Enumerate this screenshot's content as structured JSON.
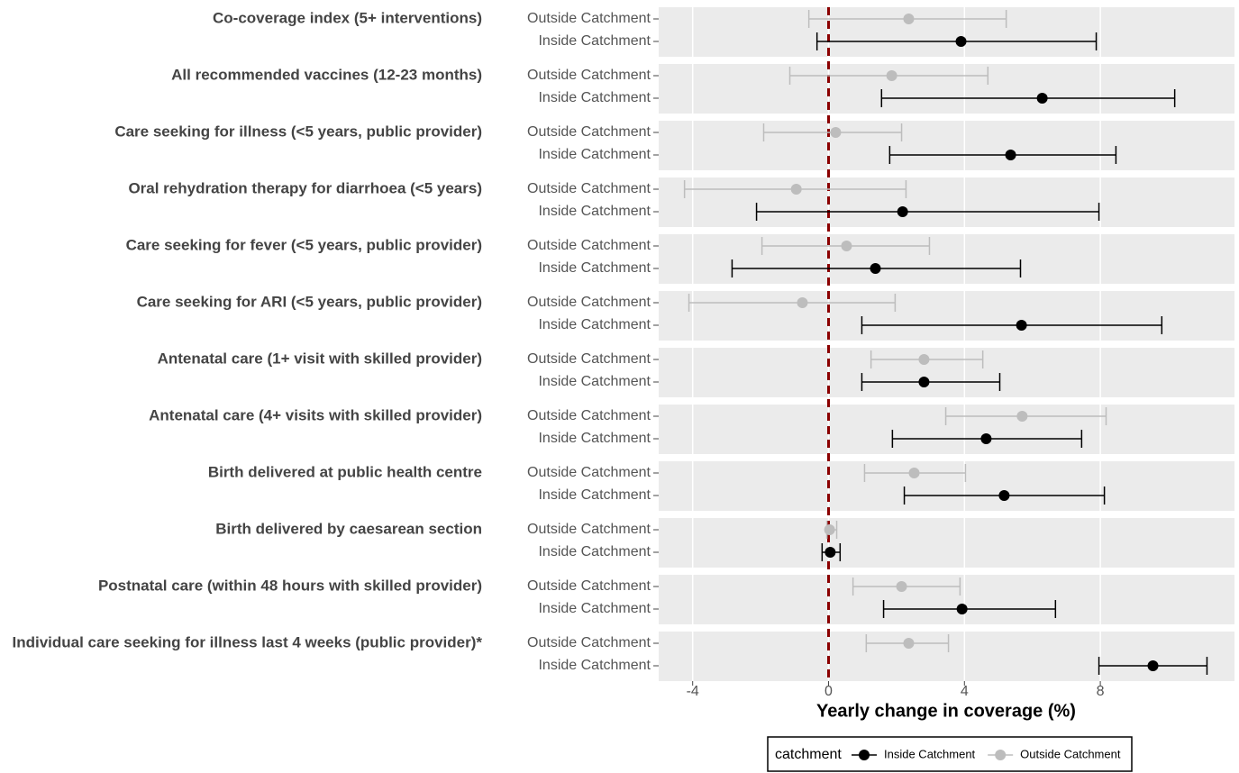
{
  "chart_data": {
    "type": "forest",
    "x_label": "Yearly change in coverage (%)",
    "legend_title": "catchment",
    "categories": [
      "Co-coverage index (5+ interventions)",
      "All recommended vaccines (12-23 months)",
      "Care seeking for illness (<5 years, public provider)",
      "Oral rehydration therapy for diarrhoea (<5 years)",
      "Care seeking for fever (<5 years, public provider)",
      "Care seeking for ARI (<5 years, public provider)",
      "Antenatal care (1+ visit with skilled provider)",
      "Antenatal care (4+ visits with skilled provider)",
      "Birth delivered at public health centre",
      "Birth delivered by caesarean section",
      "Postnatal care (within 48 hours with skilled provider)",
      "Individual care seeking for illness last 4 weeks (public provider)*"
    ],
    "series": [
      {
        "name": "Inside Catchment",
        "color": "#000000",
        "values": [
          3.9,
          6.29,
          5.36,
          2.18,
          1.38,
          5.68,
          2.81,
          4.64,
          5.17,
          0.05,
          3.93,
          9.55
        ],
        "lower": [
          -0.34,
          1.56,
          1.8,
          -2.12,
          -2.84,
          0.98,
          0.98,
          1.88,
          2.23,
          -0.19,
          1.62,
          7.96
        ],
        "upper": [
          7.88,
          10.19,
          8.46,
          7.96,
          5.65,
          9.81,
          5.04,
          7.45,
          8.12,
          0.34,
          6.68,
          11.14
        ]
      },
      {
        "name": "Outside Catchment",
        "color": "#bdbdbd",
        "values": [
          2.36,
          1.86,
          0.21,
          -0.95,
          0.53,
          -0.77,
          2.81,
          5.7,
          2.52,
          0.03,
          2.15,
          2.36
        ],
        "lower": [
          -0.58,
          -1.14,
          -1.91,
          -4.24,
          -1.96,
          -4.11,
          1.25,
          3.45,
          1.06,
          -0.05,
          0.72,
          1.11
        ],
        "upper": [
          5.23,
          4.69,
          2.15,
          2.28,
          2.97,
          1.96,
          4.54,
          8.17,
          4.03,
          0.24,
          3.87,
          3.53
        ]
      }
    ],
    "ref_line": 0,
    "ref_color": "#8b0000",
    "xlim": [
      -5.0,
      11.95
    ],
    "xticks": [
      -4,
      0,
      4,
      8
    ],
    "grid": true
  }
}
